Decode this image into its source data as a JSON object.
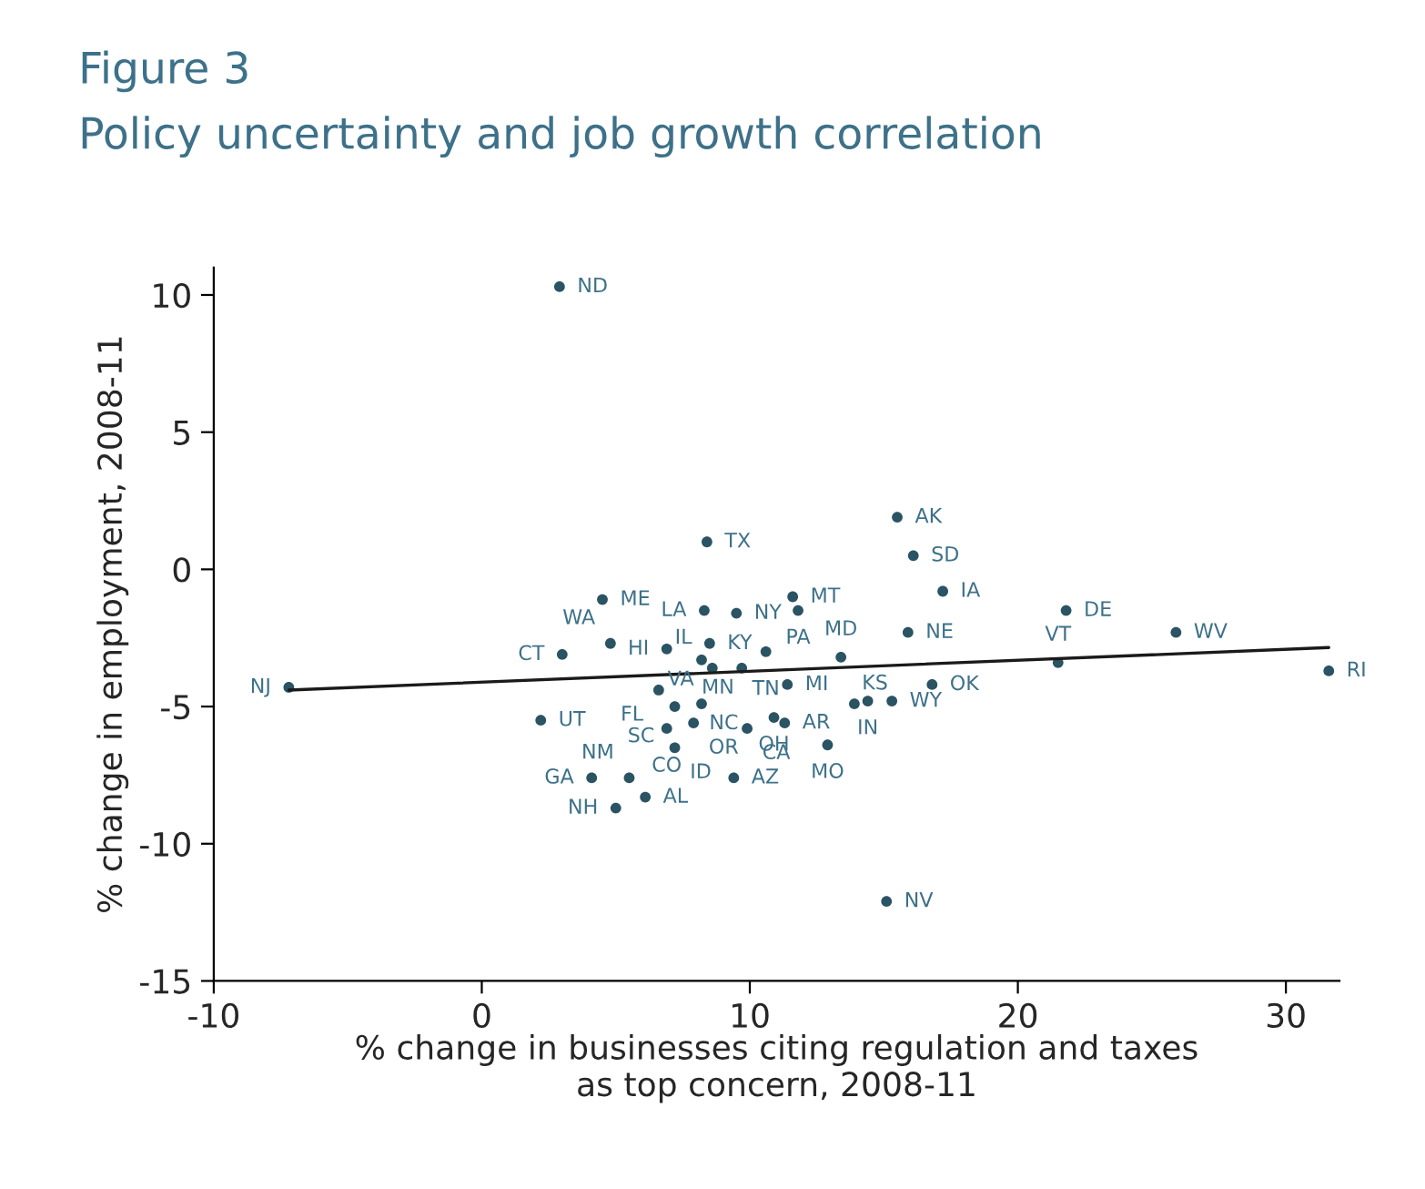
{
  "chart_data": {
    "type": "scatter",
    "title": "Figure 3",
    "subtitle": "Policy uncertainty and job growth correlation",
    "xlabel": "% change in businesses citing regulation and taxes\nas top concern, 2008-11",
    "ylabel": "% change in employment, 2008-11",
    "xlim": [
      -10,
      32
    ],
    "ylim": [
      -15,
      11
    ],
    "xticks": [
      -10,
      0,
      10,
      20,
      30
    ],
    "yticks": [
      -15,
      -10,
      -5,
      0,
      5,
      10
    ],
    "grid": false,
    "legend": false,
    "marker": "circle",
    "series": [
      {
        "color": "#2a5363",
        "x": [
          2.9,
          15.5,
          8.4,
          16.1,
          17.2,
          21.8,
          25.9,
          4.5,
          8.3,
          11.6,
          9.5,
          11.8,
          15.9,
          3.0,
          4.8,
          6.9,
          8.5,
          10.6,
          13.4,
          21.5,
          -7.2,
          31.6,
          16.8,
          14.4,
          15.3,
          11.4,
          6.6,
          9.7,
          8.2,
          8.6,
          2.2,
          7.2,
          8.2,
          6.9,
          7.9,
          7.2,
          9.9,
          11.3,
          10.9,
          13.9,
          12.9,
          4.1,
          5.5,
          9.4,
          5.0,
          6.1,
          15.1
        ],
        "values": [
          10.3,
          1.9,
          1.0,
          0.5,
          -0.8,
          -1.5,
          -2.3,
          -1.1,
          -1.5,
          -1.0,
          -1.6,
          -1.5,
          -2.3,
          -3.1,
          -2.7,
          -2.9,
          -2.7,
          -3.0,
          -3.2,
          -3.4,
          -4.3,
          -3.7,
          -4.2,
          -4.8,
          -4.8,
          -4.2,
          -4.4,
          -3.6,
          -3.3,
          -3.6,
          -5.5,
          -5.0,
          -4.9,
          -5.8,
          -5.6,
          -6.5,
          -5.8,
          -5.6,
          -5.4,
          -4.9,
          -6.4,
          -7.6,
          -7.6,
          -7.6,
          -8.7,
          -8.3,
          -12.1
        ],
        "value_labels": [
          "ND",
          "AK",
          "TX",
          "SD",
          "IA",
          "DE",
          "WV",
          "ME",
          "LA",
          "MT",
          "NY",
          "PA",
          "NE",
          "CT",
          "WA",
          "HI",
          "KY",
          "TN",
          "MD",
          "VT",
          "NJ",
          "RI",
          "OK",
          "IN",
          "WY",
          "MI",
          "FL",
          "MN",
          "VA",
          "IL",
          "UT",
          "SC",
          "NC",
          "CO",
          "OR",
          "ID",
          "CA",
          "AR",
          "OH",
          "KS",
          "MO",
          "GA",
          "NM",
          "AZ",
          "NH",
          "AL",
          "NV"
        ]
      },
      {
        "type": "line",
        "marker": "none",
        "color": "#1a1a1a",
        "x": [
          -7.2,
          31.6
        ],
        "values": [
          -4.4,
          -2.85
        ]
      }
    ]
  }
}
